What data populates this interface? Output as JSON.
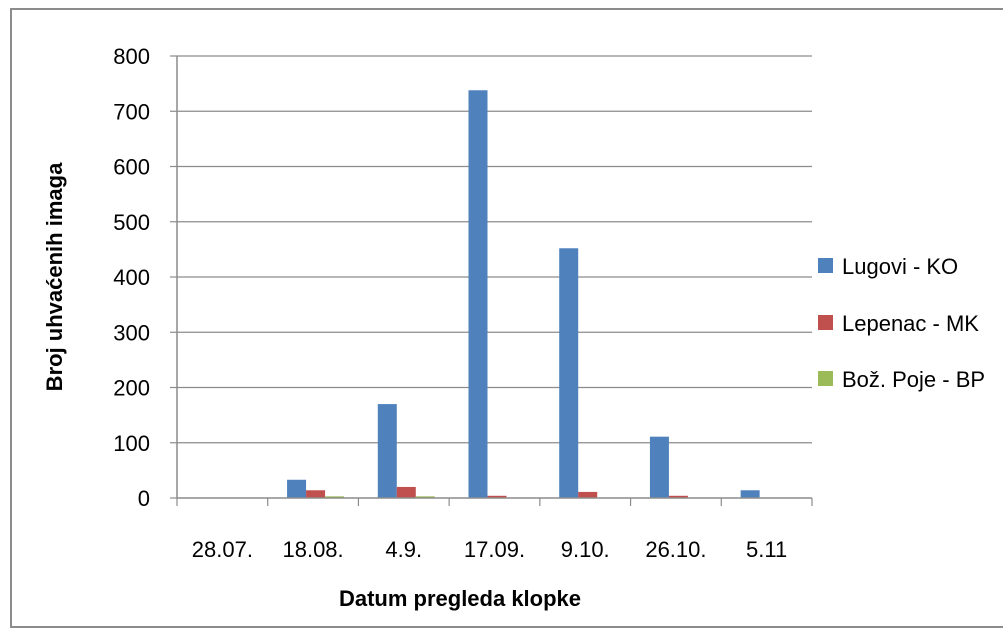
{
  "chart_data": {
    "type": "bar",
    "title": "",
    "xlabel": "Datum pregleda klopke",
    "ylabel": "Broj uhvaćenih imaga",
    "categories": [
      "28.07.",
      "18.08.",
      "4.9.",
      "17.09.",
      "9.10.",
      "26.10.",
      "5.11"
    ],
    "series": [
      {
        "name": "Lugovi - KO",
        "color": "#4f81bd",
        "values": [
          0,
          33,
          170,
          738,
          452,
          111,
          14
        ]
      },
      {
        "name": "Lepenac - MK",
        "color": "#c0504d",
        "values": [
          0,
          14,
          20,
          4,
          11,
          4,
          0
        ]
      },
      {
        "name": "Bož. Poje - BP",
        "color": "#9bbb59",
        "values": [
          0,
          3,
          3,
          0,
          0,
          0,
          0
        ]
      }
    ],
    "ylim": [
      0,
      800
    ],
    "yticks": [
      0,
      100,
      200,
      300,
      400,
      500,
      600,
      700,
      800
    ],
    "grid": true,
    "legend": "right"
  }
}
